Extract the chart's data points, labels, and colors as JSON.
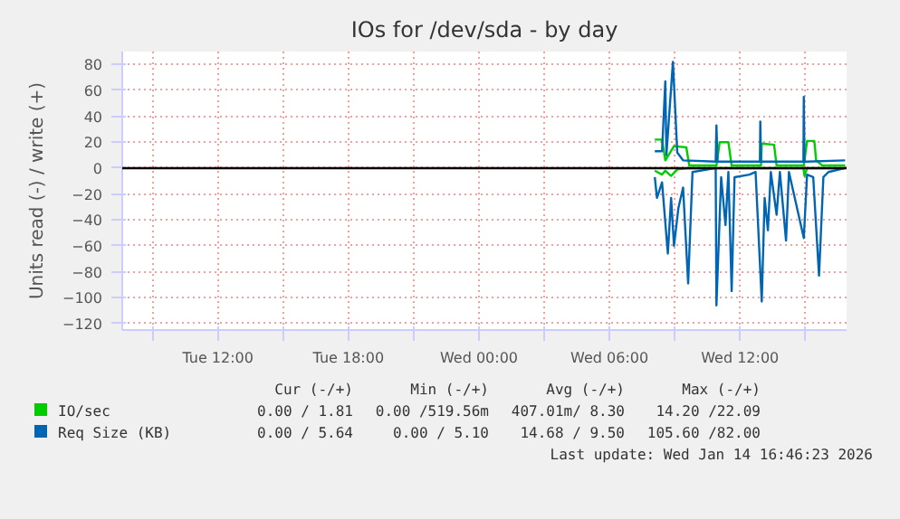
{
  "chart_data": {
    "type": "line",
    "title": "IOs for /dev/sda - by day",
    "ylabel": "Units read (-) / write (+)",
    "xlim": [
      "2026-01-13T07:36",
      "2026-01-14T16:54"
    ],
    "ylim": [
      -125,
      90
    ],
    "xticks": [
      {
        "value": "2026-01-13T09:00",
        "label": null
      },
      {
        "value": "2026-01-13T12:00",
        "label": "Tue 12:00"
      },
      {
        "value": "2026-01-13T15:00",
        "label": null
      },
      {
        "value": "2026-01-13T18:00",
        "label": "Tue 18:00"
      },
      {
        "value": "2026-01-13T21:00",
        "label": null
      },
      {
        "value": "2026-01-14T00:00",
        "label": "Wed 00:00"
      },
      {
        "value": "2026-01-14T03:00",
        "label": null
      },
      {
        "value": "2026-01-14T06:00",
        "label": "Wed 06:00"
      },
      {
        "value": "2026-01-14T09:00",
        "label": null
      },
      {
        "value": "2026-01-14T12:00",
        "label": "Wed 12:00"
      },
      {
        "value": "2026-01-14T15:00",
        "label": null
      }
    ],
    "yticks": [
      -120,
      -100,
      -80,
      -60,
      -40,
      -20,
      0,
      20,
      40,
      60,
      80
    ],
    "grid": true,
    "legend": "bottom",
    "marker": "none",
    "line_style": "solid",
    "ref_lines": [
      {
        "axis": "y",
        "value": 0,
        "label": null,
        "color": "#000000"
      }
    ],
    "series": [
      {
        "name": "IO/sec",
        "color": "#00cc00",
        "x": [
          "2026-01-14T08:05",
          "2026-01-14T08:25",
          "2026-01-14T08:34",
          "2026-01-14T08:58",
          "2026-01-14T09:32",
          "2026-01-14T09:40",
          "2026-01-14T10:55",
          "2026-01-14T11:04",
          "2026-01-14T11:28",
          "2026-01-14T11:37",
          "2026-01-14T12:58",
          "2026-01-14T13:00",
          "2026-01-14T13:34",
          "2026-01-14T13:41",
          "2026-01-14T14:56",
          "2026-01-14T15:05",
          "2026-01-14T15:25",
          "2026-01-14T15:30",
          "2026-01-14T15:47",
          "2026-01-14T16:50"
        ],
        "values": [
          22,
          22,
          6,
          17,
          16,
          2,
          2,
          20,
          20,
          2,
          2,
          19,
          18,
          2,
          2,
          21,
          21,
          6,
          2,
          2
        ]
      },
      {
        "name": null,
        "color": "#00cc00",
        "x": [
          "2026-01-14T08:05",
          "2026-01-14T08:25",
          "2026-01-14T08:34",
          "2026-01-14T08:50",
          "2026-01-14T09:07",
          "2026-01-14T09:40",
          "2026-01-14T14:55",
          "2026-01-14T14:58",
          "2026-01-14T15:05",
          "2026-01-14T16:50"
        ],
        "values": [
          -2,
          -5,
          -2,
          -6,
          -1,
          0,
          0,
          -6,
          0,
          0
        ]
      },
      {
        "name": "Req Size (KB)",
        "color": "#0066b3",
        "x": [
          "2026-01-14T08:05",
          "2026-01-14T08:25",
          "2026-01-14T08:34",
          "2026-01-14T08:37",
          "2026-01-14T08:55",
          "2026-01-14T09:07",
          "2026-01-14T09:23",
          "2026-01-14T10:53",
          "2026-01-14T10:55",
          "2026-01-14T10:58",
          "2026-01-14T11:04",
          "2026-01-14T12:55",
          "2026-01-14T12:56",
          "2026-01-14T12:58",
          "2026-01-14T13:00",
          "2026-01-14T14:55",
          "2026-01-14T14:56",
          "2026-01-14T14:58",
          "2026-01-14T15:05",
          "2026-01-14T16:50"
        ],
        "values": [
          13,
          13,
          67,
          10,
          82,
          12,
          6,
          5,
          33,
          5,
          5,
          5,
          36,
          5,
          5,
          5,
          55,
          5,
          5,
          6
        ]
      },
      {
        "name": null,
        "color": "#0066b3",
        "x": [
          "2026-01-14T08:05",
          "2026-01-14T08:11",
          "2026-01-14T08:25",
          "2026-01-14T08:41",
          "2026-01-14T08:50",
          "2026-01-14T08:58",
          "2026-01-14T09:10",
          "2026-01-14T09:23",
          "2026-01-14T09:37",
          "2026-01-14T09:49",
          "2026-01-14T10:53",
          "2026-01-14T10:55",
          "2026-01-14T11:08",
          "2026-01-14T11:20",
          "2026-01-14T11:28",
          "2026-01-14T11:37",
          "2026-01-14T11:45",
          "2026-01-14T12:26",
          "2026-01-14T12:43",
          "2026-01-14T13:00",
          "2026-01-14T13:08",
          "2026-01-14T13:17",
          "2026-01-14T13:25",
          "2026-01-14T13:41",
          "2026-01-14T13:50",
          "2026-01-14T14:07",
          "2026-01-14T14:15",
          "2026-01-14T14:56",
          "2026-01-14T15:05",
          "2026-01-14T15:22",
          "2026-01-14T15:38",
          "2026-01-14T15:50",
          "2026-01-14T16:04",
          "2026-01-14T16:50"
        ],
        "values": [
          -7,
          -23,
          -11,
          -66,
          -23,
          -60,
          -31,
          -15,
          -89,
          -3,
          0,
          -106,
          -7,
          -44,
          -3,
          -95,
          -7,
          -5,
          -3,
          -103,
          -23,
          -48,
          -3,
          -36,
          -3,
          -56,
          -3,
          -54,
          -5,
          -7,
          -83,
          -7,
          -3,
          0
        ]
      }
    ],
    "annotations": [
      "Cur (-/+)",
      "Min (-/+)",
      "Avg (-/+)",
      "Max (-/+)",
      "0.00 / 1.81",
      "0.00 /519.56m",
      "407.01m/ 8.30",
      "14.20 /22.09",
      "0.00 / 5.64",
      "0.00 / 5.10",
      "14.68 / 9.50",
      "105.60 /82.00",
      "Last update: Wed Jan 14 16:46:23 2026"
    ]
  }
}
